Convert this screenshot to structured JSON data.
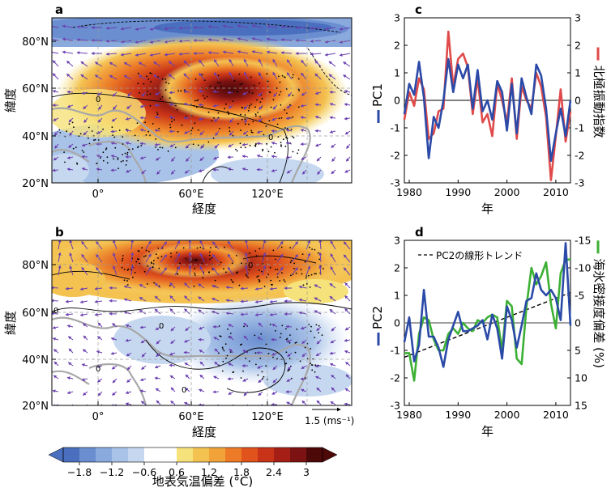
{
  "panels": {
    "a": {
      "letter": "a",
      "y_axis_label": "緯度",
      "x_axis_label": "経度",
      "x_ticks": [
        "0°",
        "60°E",
        "120°E"
      ],
      "y_ticks": [
        "80°N",
        "60°N",
        "40°N",
        "20°N"
      ],
      "contour_labels": [
        "0",
        "0"
      ]
    },
    "b": {
      "letter": "b",
      "y_axis_label": "緯度",
      "x_axis_label": "経度",
      "x_ticks": [
        "0°",
        "60°E",
        "120°E"
      ],
      "y_ticks": [
        "80°N",
        "60°N",
        "40°N",
        "20°N"
      ],
      "contour_labels": [
        "0",
        "0",
        "0",
        "0",
        "0"
      ],
      "reference_vector": "1.5 (ms⁻¹)"
    }
  },
  "colorbar": {
    "tick_labels": [
      "−1.8",
      "−1.2",
      "−0.6",
      "0.6",
      "1.2",
      "1.8",
      "2.4",
      "3"
    ],
    "label": "地表気温偏差 (°C)",
    "colors": [
      "#4a6fbf",
      "#6a8ed0",
      "#8aaade",
      "#a9c3e8",
      "#c6d8f0",
      "#ffffff",
      "#ffffff",
      "#f6e27a",
      "#f4c251",
      "#f1a239",
      "#ec7a26",
      "#e0531d",
      "#c93318",
      "#a51f17",
      "#7d1212",
      "#4d0808"
    ]
  },
  "chart_data": [
    {
      "panel": "c",
      "type": "line",
      "title": "",
      "x": [
        1979,
        1980,
        1981,
        1982,
        1983,
        1984,
        1985,
        1986,
        1987,
        1988,
        1989,
        1990,
        1991,
        1992,
        1993,
        1994,
        1995,
        1996,
        1997,
        1998,
        1999,
        2000,
        2001,
        2002,
        2003,
        2004,
        2005,
        2006,
        2007,
        2008,
        2009,
        2010,
        2011,
        2012,
        2013
      ],
      "xlim": [
        1979,
        2013
      ],
      "xticks": [
        1980,
        1990,
        2000,
        2010
      ],
      "xlabel": "年",
      "left_axis": {
        "label": "PC1",
        "ylim": [
          -3,
          3
        ],
        "ticks": [
          -3,
          -2,
          -1,
          0,
          1,
          2,
          3
        ]
      },
      "right_axis": {
        "label": "北極振動指数",
        "ylim": [
          -3,
          3
        ],
        "ticks": [
          -3,
          -2,
          -1,
          0,
          1,
          2,
          3
        ]
      },
      "zero_line": true,
      "series": [
        {
          "name": "PC1",
          "axis": "left",
          "color": "#2b4aa8",
          "values": [
            -0.5,
            0.6,
            0.2,
            1.4,
            0.1,
            -2.1,
            -0.6,
            -1.0,
            0.0,
            1.5,
            0.3,
            1.3,
            0.8,
            1.3,
            -0.3,
            1.1,
            -0.4,
            0.0,
            -0.7,
            0.7,
            0.3,
            -1.1,
            0.6,
            -1.2,
            0.8,
            0.1,
            -0.5,
            1.3,
            0.9,
            -0.3,
            -2.2,
            -1.2,
            -0.3,
            -1.3,
            0.0
          ]
        },
        {
          "name": "北極振動指数",
          "axis": "right",
          "color": "#e04a4a",
          "values": [
            -0.7,
            0.3,
            -0.2,
            0.8,
            0.4,
            -1.4,
            -1.2,
            -0.4,
            -0.3,
            2.5,
            0.5,
            1.5,
            1.7,
            1.2,
            -0.5,
            0.8,
            -0.8,
            -0.5,
            -1.3,
            0.6,
            0.0,
            -0.8,
            0.8,
            -1.4,
            0.5,
            0.0,
            -0.3,
            1.0,
            0.5,
            -0.6,
            -2.9,
            -1.3,
            0.4,
            -1.5,
            -0.4
          ]
        }
      ]
    },
    {
      "panel": "d",
      "type": "line",
      "title": "",
      "x": [
        1979,
        1980,
        1981,
        1982,
        1983,
        1984,
        1985,
        1986,
        1987,
        1988,
        1989,
        1990,
        1991,
        1992,
        1993,
        1994,
        1995,
        1996,
        1997,
        1998,
        1999,
        2000,
        2001,
        2002,
        2003,
        2004,
        2005,
        2006,
        2007,
        2008,
        2009,
        2010,
        2011,
        2012,
        2013
      ],
      "xlim": [
        1979,
        2013
      ],
      "xticks": [
        1980,
        1990,
        2000,
        2010
      ],
      "xlabel": "年",
      "left_axis": {
        "label": "PC2",
        "ylim": [
          -3,
          3
        ],
        "ticks": [
          -3,
          -2,
          -1,
          0,
          1,
          2,
          3
        ]
      },
      "right_axis": {
        "label": "海氷密接度偏差 (%)",
        "ylim": [
          15,
          -15
        ],
        "inverted": true,
        "ticks": [
          -15,
          -10,
          -5,
          0,
          5,
          10,
          15
        ]
      },
      "zero_line": true,
      "legend": {
        "label": "PC2の線形トレンド",
        "position": "top",
        "style": "dashed"
      },
      "trend": {
        "name": "PC2の線形トレンド",
        "axis": "left",
        "color": "#000000",
        "dashed": true,
        "x": [
          1979,
          2013
        ],
        "values": [
          -1.25,
          1.1
        ]
      },
      "series": [
        {
          "name": "PC2",
          "axis": "left",
          "color": "#2b4aa8",
          "values": [
            -0.7,
            0.2,
            -1.4,
            -0.8,
            1.2,
            -0.5,
            -0.5,
            -0.9,
            -1.6,
            -0.6,
            -0.1,
            0.4,
            -0.3,
            -0.3,
            -0.2,
            -0.1,
            0.1,
            -0.6,
            0.3,
            -0.2,
            -1.3,
            0.6,
            0.1,
            -0.9,
            -0.1,
            0.8,
            0.9,
            1.8,
            1.2,
            1.0,
            1.2,
            0.9,
            0.1,
            2.9,
            -0.1
          ]
        },
        {
          "name": "海氷密接度偏差",
          "axis": "right",
          "color": "#3cb034",
          "values": [
            5.5,
            5.5,
            10.5,
            2.0,
            -1.0,
            -0.5,
            3.0,
            5.0,
            5.0,
            2.0,
            1.0,
            2.0,
            0.0,
            1.0,
            1.5,
            -0.5,
            0.0,
            -1.0,
            -1.5,
            -1.0,
            5.0,
            -4.0,
            -3.0,
            6.5,
            7.5,
            -3.0,
            -10.0,
            -7.0,
            -8.5,
            -11.0,
            -3.5,
            1.0,
            -9.0,
            -11.5,
            -11.5
          ]
        }
      ]
    }
  ]
}
